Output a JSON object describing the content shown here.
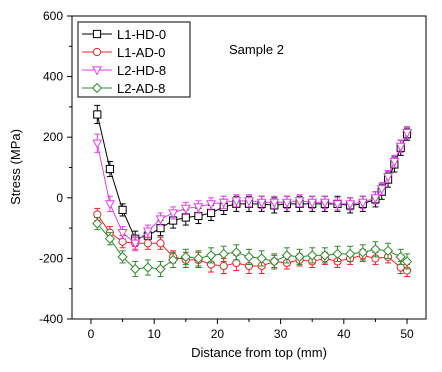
{
  "chart_data": {
    "type": "line",
    "title": "",
    "annotation": "Sample 2",
    "xlabel": "Distance from top (mm)",
    "ylabel": "Stress (MPa)",
    "xlim": [
      -3,
      53
    ],
    "ylim": [
      -400,
      600
    ],
    "xticks": [
      0,
      10,
      20,
      30,
      40,
      50
    ],
    "yticks": [
      -400,
      -200,
      0,
      200,
      400,
      600
    ],
    "grid": false,
    "legend_position": "top-left",
    "series": [
      {
        "name": "L1-HD-0",
        "color": "#000000",
        "marker": "square",
        "x": [
          1,
          3,
          5,
          7,
          9,
          11,
          13,
          15,
          17,
          19,
          21,
          23,
          25,
          27,
          29,
          31,
          33,
          35,
          37,
          39,
          41,
          43,
          45,
          46,
          47,
          48,
          49,
          50
        ],
        "y": [
          275,
          95,
          -40,
          -135,
          -125,
          -100,
          -75,
          -65,
          -60,
          -50,
          -30,
          -20,
          -20,
          -20,
          -25,
          -20,
          -20,
          -20,
          -20,
          -20,
          -25,
          -20,
          -5,
          20,
          60,
          110,
          165,
          210
        ],
        "err": [
          30,
          25,
          20,
          25,
          25,
          25,
          25,
          25,
          25,
          25,
          25,
          25,
          25,
          25,
          25,
          25,
          25,
          25,
          25,
          25,
          25,
          25,
          25,
          25,
          25,
          25,
          25,
          20
        ]
      },
      {
        "name": "L1-AD-0",
        "color": "#e8242a",
        "marker": "circle",
        "x": [
          1,
          3,
          5,
          7,
          9,
          11,
          13,
          15,
          17,
          19,
          21,
          23,
          25,
          27,
          29,
          31,
          33,
          35,
          37,
          39,
          41,
          43,
          45,
          47,
          49,
          50
        ],
        "y": [
          -55,
          -115,
          -145,
          -150,
          -150,
          -150,
          -195,
          -205,
          -205,
          -220,
          -225,
          -215,
          -225,
          -225,
          -210,
          -215,
          -205,
          -210,
          -200,
          -210,
          -200,
          -190,
          -200,
          -195,
          -230,
          -240
        ],
        "err": [
          20,
          20,
          20,
          20,
          20,
          20,
          20,
          25,
          25,
          25,
          25,
          25,
          25,
          25,
          20,
          20,
          20,
          20,
          20,
          20,
          20,
          20,
          20,
          20,
          20,
          20
        ]
      },
      {
        "name": "L2-HD-8",
        "color": "#e040e8",
        "marker": "triangle-down",
        "x": [
          1,
          3,
          5,
          7,
          9,
          11,
          13,
          15,
          17,
          19,
          21,
          23,
          25,
          27,
          29,
          31,
          33,
          35,
          37,
          39,
          41,
          43,
          45,
          46,
          47,
          48,
          49,
          50
        ],
        "y": [
          180,
          -20,
          -115,
          -150,
          -110,
          -70,
          -50,
          -35,
          -30,
          -20,
          -15,
          -10,
          -10,
          -15,
          -15,
          -15,
          -10,
          -15,
          -15,
          -20,
          -20,
          -15,
          0,
          30,
          70,
          120,
          170,
          215
        ],
        "err": [
          30,
          25,
          20,
          25,
          20,
          20,
          20,
          20,
          20,
          20,
          20,
          20,
          20,
          20,
          20,
          20,
          20,
          20,
          20,
          20,
          20,
          20,
          20,
          20,
          20,
          20,
          20,
          20
        ]
      },
      {
        "name": "L2-AD-8",
        "color": "#2e8b2e",
        "marker": "diamond",
        "x": [
          1,
          3,
          5,
          7,
          9,
          11,
          13,
          15,
          17,
          19,
          21,
          23,
          25,
          27,
          29,
          31,
          33,
          35,
          37,
          39,
          41,
          43,
          45,
          47,
          49,
          50
        ],
        "y": [
          -85,
          -135,
          -195,
          -235,
          -230,
          -235,
          -205,
          -195,
          -200,
          -190,
          -185,
          -180,
          -195,
          -200,
          -210,
          -190,
          -195,
          -190,
          -190,
          -185,
          -185,
          -180,
          -170,
          -175,
          -195,
          -210
        ],
        "err": [
          20,
          20,
          20,
          25,
          25,
          25,
          25,
          25,
          25,
          25,
          25,
          25,
          25,
          25,
          25,
          25,
          25,
          25,
          25,
          25,
          25,
          25,
          25,
          25,
          25,
          25
        ]
      }
    ]
  }
}
